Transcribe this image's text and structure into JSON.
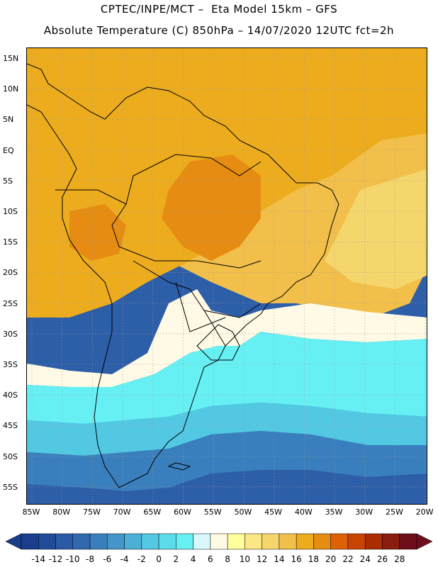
{
  "header": {
    "line1": "CPTEC/INPE/MCT –  Eta Model 15km – GFS",
    "line2": "Absolute Temperature (C) 850hPa – 14/07/2020 12UTC fct=2h"
  },
  "latitude_labels": [
    "15N",
    "10N",
    "5N",
    "EQ",
    "5S",
    "10S",
    "15S",
    "20S",
    "25S",
    "30S",
    "35S",
    "40S",
    "45S",
    "50S",
    "55S"
  ],
  "longitude_labels": [
    "85W",
    "80W",
    "75W",
    "70W",
    "65W",
    "60W",
    "55W",
    "50W",
    "45W",
    "40W",
    "35W",
    "30W",
    "25W",
    "20W"
  ],
  "colorbar": {
    "labels": [
      "-14",
      "-12",
      "-10",
      "-8",
      "-6",
      "-4",
      "-2",
      "0",
      "2",
      "4",
      "6",
      "8",
      "10",
      "12",
      "14",
      "16",
      "18",
      "20",
      "22",
      "24",
      "26",
      "28"
    ],
    "colors": [
      "#1a3d8c",
      "#204b98",
      "#2a5aa5",
      "#3069b0",
      "#3a7fbd",
      "#4596c8",
      "#4cb0d6",
      "#52c8e2",
      "#5cdcea",
      "#66f0f4",
      "#d8f8fc",
      "#fffae6",
      "#ffff9c",
      "#fbe884",
      "#f5d66c",
      "#f2c04a",
      "#ecac1e",
      "#e68c12",
      "#dd6106",
      "#c84400",
      "#aa2c00",
      "#8a1c10",
      "#6e0e1c"
    ]
  },
  "field_colors": {
    "ocean_sw": "#2d5ea8",
    "ocean_cold": "#3a7fbd",
    "ocean_cyan": "#52c8e2",
    "ocean_light": "#66f0f4",
    "transition": "#fffae6",
    "yellow": "#f5d66c",
    "gold": "#f2c04a",
    "orange": "#ecac1e",
    "darkorange": "#e68c12",
    "boundary": "#000000"
  }
}
